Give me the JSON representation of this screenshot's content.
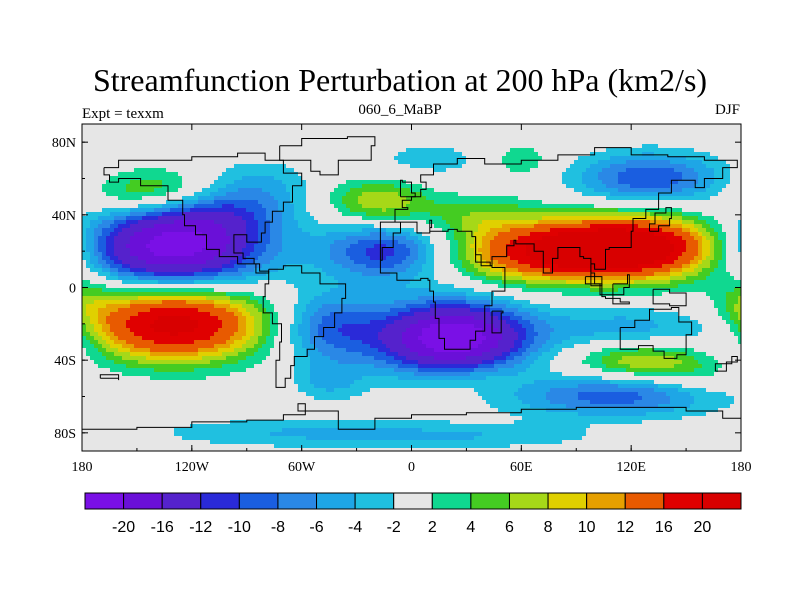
{
  "title": "Streamfunction Perturbation at 200 hPa (km2/s)",
  "subtitle_left": "Expt = texxm",
  "subtitle_center": "060_6_MaBP",
  "subtitle_right": "DJF",
  "colors": {
    "land_outline": "#000000",
    "neutral": "#e6e6e6"
  },
  "chart_data": {
    "type": "heatmap",
    "xlim": [
      -180,
      180
    ],
    "ylim": [
      -90,
      90
    ],
    "x_ticks": [
      {
        "value": -180,
        "label": "180"
      },
      {
        "value": -120,
        "label": "120W"
      },
      {
        "value": -60,
        "label": "60W"
      },
      {
        "value": 0,
        "label": "0"
      },
      {
        "value": 60,
        "label": "60E"
      },
      {
        "value": 120,
        "label": "120E"
      },
      {
        "value": 180,
        "label": "180"
      }
    ],
    "y_ticks": [
      {
        "value": 80,
        "label": "80N"
      },
      {
        "value": 40,
        "label": "40N"
      },
      {
        "value": 0,
        "label": "0"
      },
      {
        "value": -40,
        "label": "40S"
      },
      {
        "value": -80,
        "label": "80S"
      }
    ],
    "levels": [
      -20,
      -16,
      -12,
      -10,
      -8,
      -6,
      -4,
      -2,
      2,
      4,
      6,
      8,
      10,
      12,
      16,
      20
    ],
    "level_labels": [
      "-20",
      "-16",
      "-12",
      "-10",
      "-8",
      "-6",
      "-4",
      "-2",
      "2",
      "4",
      "6",
      "8",
      "10",
      "12",
      "16",
      "20"
    ],
    "palette": [
      "#7a10e6",
      "#6a10d8",
      "#5522cc",
      "#2a2ad8",
      "#1a5ee0",
      "#2a88e6",
      "#1ea6e6",
      "#20c0e0",
      "#e6e6e6",
      "#10d890",
      "#44cc22",
      "#a6d818",
      "#e0d000",
      "#e6a000",
      "#e85a00",
      "#e00000",
      "#d80000"
    ],
    "features": [
      {
        "lon": -130,
        "lat": 22,
        "amp": -22,
        "slon": 34,
        "slat": 15
      },
      {
        "lon": -105,
        "lat": 42,
        "amp": -6,
        "slon": 28,
        "slat": 10
      },
      {
        "lon": -140,
        "lat": 52,
        "amp": 8,
        "slon": 26,
        "slat": 9
      },
      {
        "lon": -130,
        "lat": -20,
        "amp": 22,
        "slon": 34,
        "slat": 14
      },
      {
        "lon": -178,
        "lat": -8,
        "amp": 4,
        "slon": 12,
        "slat": 14
      },
      {
        "lon": -85,
        "lat": 57,
        "amp": -4,
        "slon": 22,
        "slat": 10
      },
      {
        "lon": -45,
        "lat": -22,
        "amp": -9,
        "slon": 20,
        "slat": 14
      },
      {
        "lon": -15,
        "lat": 20,
        "amp": -11,
        "slon": 24,
        "slat": 11
      },
      {
        "lon": -18,
        "lat": 47,
        "amp": 8,
        "slon": 20,
        "slat": 9
      },
      {
        "lon": 35,
        "lat": 40,
        "amp": 4,
        "slon": 22,
        "slat": 8
      },
      {
        "lon": 10,
        "lat": 70,
        "amp": -3,
        "slon": 24,
        "slat": 8
      },
      {
        "lon": 60,
        "lat": 70,
        "amp": 4,
        "slon": 12,
        "slat": 7
      },
      {
        "lon": 22,
        "lat": -28,
        "amp": -24,
        "slon": 28,
        "slat": 14
      },
      {
        "lon": 30,
        "lat": -50,
        "amp": 3,
        "slon": 20,
        "slat": 8
      },
      {
        "lon": -45,
        "lat": -52,
        "amp": -4,
        "slon": 14,
        "slat": 8
      },
      {
        "lon": 65,
        "lat": 20,
        "amp": 16,
        "slon": 30,
        "slat": 12
      },
      {
        "lon": 125,
        "lat": 22,
        "amp": 24,
        "slon": 30,
        "slat": 12
      },
      {
        "lon": 95,
        "lat": 20,
        "amp": 8,
        "slon": 18,
        "slat": 8
      },
      {
        "lon": 130,
        "lat": 60,
        "amp": -10,
        "slon": 28,
        "slat": 10
      },
      {
        "lon": 120,
        "lat": -22,
        "amp": -5,
        "slon": 40,
        "slat": 9
      },
      {
        "lon": 125,
        "lat": -40,
        "amp": 8,
        "slon": 24,
        "slat": 7
      },
      {
        "lon": 110,
        "lat": -60,
        "amp": -9,
        "slon": 40,
        "slat": 8
      },
      {
        "lon": -60,
        "lat": -80,
        "amp": -4,
        "slon": 60,
        "slat": 6
      },
      {
        "lon": 40,
        "lat": -82,
        "amp": -3,
        "slon": 50,
        "slat": 5
      },
      {
        "lon": 175,
        "lat": -30,
        "amp": -4,
        "slon": 14,
        "slat": 14
      },
      {
        "lon": 160,
        "lat": -48,
        "amp": 3,
        "slon": 18,
        "slat": 8
      }
    ]
  }
}
